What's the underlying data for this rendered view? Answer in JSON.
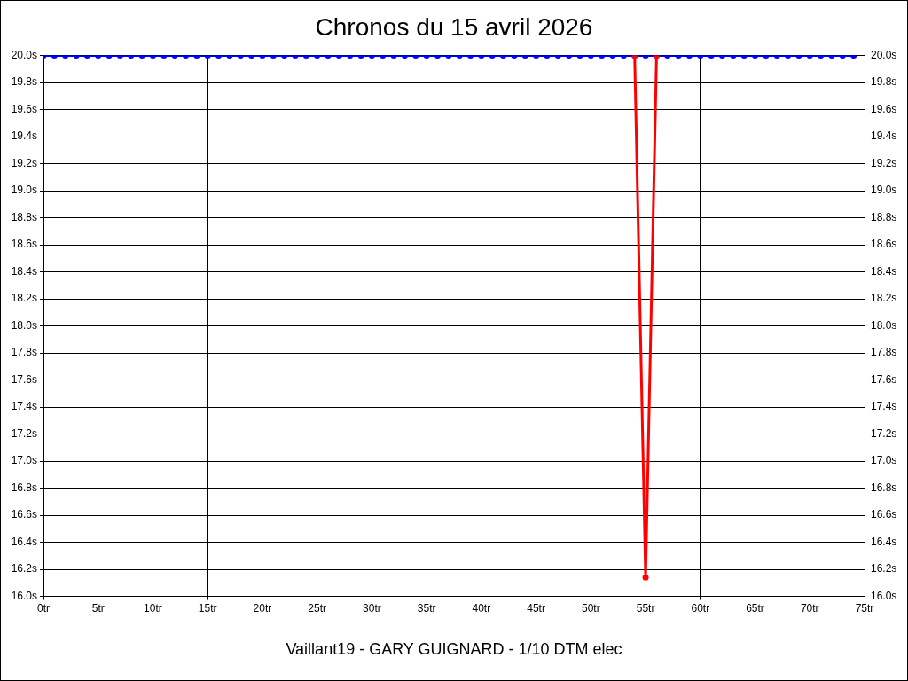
{
  "chart_data": {
    "type": "line",
    "title": "Chronos du 15 avril 2026",
    "x": [
      0,
      1,
      2,
      3,
      4,
      5,
      6,
      7,
      8,
      9,
      10,
      11,
      12,
      13,
      14,
      15,
      16,
      17,
      18,
      19,
      20,
      21,
      22,
      23,
      24,
      25,
      26,
      27,
      28,
      29,
      30,
      31,
      32,
      33,
      34,
      35,
      36,
      37,
      38,
      39,
      40,
      41,
      42,
      43,
      44,
      45,
      46,
      47,
      48,
      49,
      50,
      51,
      52,
      53,
      54,
      55,
      56,
      57,
      58,
      59,
      60,
      61,
      62,
      63,
      64,
      65,
      66,
      67,
      68,
      69,
      70,
      71,
      72,
      73,
      74
    ],
    "series": [
      {
        "color": "#0000ff",
        "values": [
          20,
          20,
          20,
          20,
          20,
          20,
          20,
          20,
          20,
          20,
          20,
          20,
          20,
          20,
          20,
          20,
          20,
          20,
          20,
          20,
          20,
          20,
          20,
          20,
          20,
          20,
          20,
          20,
          20,
          20,
          20,
          20,
          20,
          20,
          20,
          20,
          20,
          20,
          20,
          20,
          20,
          20,
          20,
          20,
          20,
          20,
          20,
          20,
          20,
          20,
          20,
          20,
          20,
          20,
          20,
          20,
          20,
          20,
          20,
          20,
          20,
          20,
          20,
          20,
          20,
          20,
          20,
          20,
          20,
          20,
          20,
          20,
          20,
          20,
          20
        ]
      },
      {
        "color": "#ff0000",
        "values": [
          null,
          null,
          null,
          null,
          null,
          null,
          null,
          null,
          null,
          null,
          null,
          null,
          null,
          null,
          null,
          null,
          null,
          null,
          null,
          null,
          null,
          null,
          null,
          null,
          null,
          null,
          null,
          null,
          null,
          null,
          null,
          null,
          null,
          null,
          null,
          null,
          null,
          null,
          null,
          null,
          null,
          null,
          null,
          null,
          null,
          null,
          null,
          null,
          null,
          null,
          null,
          null,
          null,
          null,
          20,
          16.14,
          20,
          null,
          null,
          null,
          null,
          null,
          null,
          null,
          null,
          null,
          null,
          null,
          null,
          null,
          null,
          null,
          null,
          null,
          null
        ]
      }
    ],
    "xlim": [
      0,
      75
    ],
    "xticks": [
      {
        "value": 0,
        "label": "0tr"
      },
      {
        "value": 5,
        "label": "5tr"
      },
      {
        "value": 10,
        "label": "10tr"
      },
      {
        "value": 15,
        "label": "15tr"
      },
      {
        "value": 20,
        "label": "20tr"
      },
      {
        "value": 25,
        "label": "25tr"
      },
      {
        "value": 30,
        "label": "30tr"
      },
      {
        "value": 35,
        "label": "35tr"
      },
      {
        "value": 40,
        "label": "40tr"
      },
      {
        "value": 45,
        "label": "45tr"
      },
      {
        "value": 50,
        "label": "50tr"
      },
      {
        "value": 55,
        "label": "55tr"
      },
      {
        "value": 60,
        "label": "60tr"
      },
      {
        "value": 65,
        "label": "65tr"
      },
      {
        "value": 70,
        "label": "70tr"
      },
      {
        "value": 75,
        "label": "75tr"
      }
    ],
    "ylim": [
      16,
      20
    ],
    "yticks": [
      {
        "value": 16,
        "label": "16.0s"
      },
      {
        "value": 16.2,
        "label": "16.2s"
      },
      {
        "value": 16.4,
        "label": "16.4s"
      },
      {
        "value": 16.6,
        "label": "16.6s"
      },
      {
        "value": 16.8,
        "label": "16.8s"
      },
      {
        "value": 17,
        "label": "17.0s"
      },
      {
        "value": 17.2,
        "label": "17.2s"
      },
      {
        "value": 17.4,
        "label": "17.4s"
      },
      {
        "value": 17.6,
        "label": "17.6s"
      },
      {
        "value": 17.8,
        "label": "17.8s"
      },
      {
        "value": 18,
        "label": "18.0s"
      },
      {
        "value": 18.2,
        "label": "18.2s"
      },
      {
        "value": 18.4,
        "label": "18.4s"
      },
      {
        "value": 18.6,
        "label": "18.6s"
      },
      {
        "value": 18.8,
        "label": "18.8s"
      },
      {
        "value": 19,
        "label": "19.0s"
      },
      {
        "value": 19.2,
        "label": "19.2s"
      },
      {
        "value": 19.4,
        "label": "19.4s"
      },
      {
        "value": 19.6,
        "label": "19.6s"
      },
      {
        "value": 19.8,
        "label": "19.8s"
      },
      {
        "value": 20,
        "label": "20.0s"
      }
    ],
    "y2lim": [
      16,
      20
    ],
    "y2ticks": [
      {
        "value": 16,
        "label": "16.0s"
      },
      {
        "value": 16.2,
        "label": "16.2s"
      },
      {
        "value": 16.4,
        "label": "16.4s"
      },
      {
        "value": 16.6,
        "label": "16.6s"
      },
      {
        "value": 16.8,
        "label": "16.8s"
      },
      {
        "value": 17,
        "label": "17.0s"
      },
      {
        "value": 17.2,
        "label": "17.2s"
      },
      {
        "value": 17.4,
        "label": "17.4s"
      },
      {
        "value": 17.6,
        "label": "17.6s"
      },
      {
        "value": 17.8,
        "label": "17.8s"
      },
      {
        "value": 18,
        "label": "18.0s"
      },
      {
        "value": 18.2,
        "label": "18.2s"
      },
      {
        "value": 18.4,
        "label": "18.4s"
      },
      {
        "value": 18.6,
        "label": "18.6s"
      },
      {
        "value": 18.8,
        "label": "18.8s"
      },
      {
        "value": 19,
        "label": "19.0s"
      },
      {
        "value": 19.2,
        "label": "19.2s"
      },
      {
        "value": 19.4,
        "label": "19.4s"
      },
      {
        "value": 19.6,
        "label": "19.6s"
      },
      {
        "value": 19.8,
        "label": "19.8s"
      },
      {
        "value": 20,
        "label": "20.0s"
      }
    ],
    "grid": true,
    "legend": false,
    "marker": "circle",
    "line_style": "solid",
    "annotations": [
      "Vaillant19 - GARY GUIGNARD - 1/10 DTM elec"
    ]
  }
}
